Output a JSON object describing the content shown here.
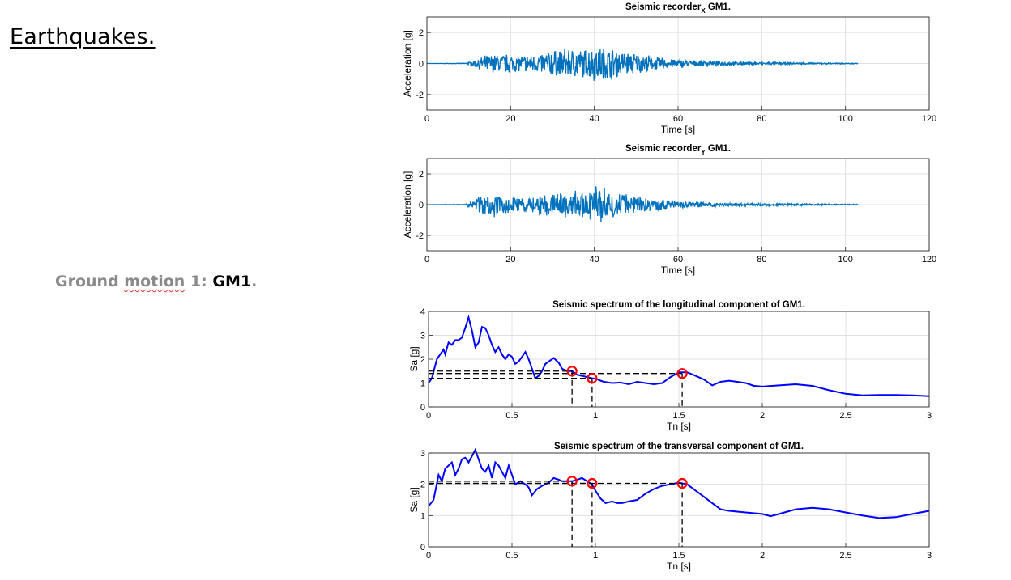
{
  "slide": {
    "title": "Earthquakes.",
    "label_part1": "Ground ",
    "label_part2": "motion",
    "label_part3": " 1: ",
    "label_part4": "GM1",
    "label_part5": "."
  },
  "colors": {
    "record_line": "#0072BD",
    "spectrum_line": "#0000FF",
    "marker": "#FF0000",
    "guide": "#000000",
    "grid": "#E0E0E0"
  },
  "chart_data": [
    {
      "type": "line",
      "title_main": "Seismic recorder",
      "title_sub": "X",
      "title_end": " GM1.",
      "xlabel": "Time [s]",
      "ylabel": "Acceleration [g]",
      "xlim": [
        0,
        120
      ],
      "ylim": [
        -3,
        3
      ],
      "xticks": [
        0,
        20,
        40,
        60,
        80,
        100,
        120
      ],
      "yticks": [
        -2,
        0,
        2
      ],
      "grid": true,
      "record_end": 103,
      "envelope": [
        [
          0,
          0
        ],
        [
          9,
          0.02
        ],
        [
          11,
          0.15
        ],
        [
          14,
          0.45
        ],
        [
          18,
          0.55
        ],
        [
          22,
          0.45
        ],
        [
          26,
          0.5
        ],
        [
          30,
          0.75
        ],
        [
          34,
          0.85
        ],
        [
          38,
          0.8
        ],
        [
          40,
          1.0
        ],
        [
          44,
          0.85
        ],
        [
          48,
          0.65
        ],
        [
          52,
          0.5
        ],
        [
          56,
          0.35
        ],
        [
          60,
          0.25
        ],
        [
          64,
          0.18
        ],
        [
          70,
          0.12
        ],
        [
          78,
          0.08
        ],
        [
          88,
          0.05
        ],
        [
          96,
          0.04
        ],
        [
          103,
          0.02
        ]
      ],
      "seed": 7
    },
    {
      "type": "line",
      "title_main": "Seismic recorder",
      "title_sub": "Y",
      "title_end": " GM1.",
      "xlabel": "Time [s]",
      "ylabel": "Acceleration [g]",
      "xlim": [
        0,
        120
      ],
      "ylim": [
        -3,
        3
      ],
      "xticks": [
        0,
        20,
        40,
        60,
        80,
        100,
        120
      ],
      "yticks": [
        -2,
        0,
        2
      ],
      "grid": true,
      "record_end": 103,
      "envelope": [
        [
          0,
          0
        ],
        [
          9,
          0.02
        ],
        [
          11,
          0.2
        ],
        [
          14,
          0.6
        ],
        [
          16,
          0.7
        ],
        [
          20,
          0.5
        ],
        [
          25,
          0.5
        ],
        [
          30,
          0.7
        ],
        [
          34,
          0.75
        ],
        [
          38,
          0.8
        ],
        [
          41,
          1.1
        ],
        [
          44,
          0.8
        ],
        [
          48,
          0.6
        ],
        [
          52,
          0.4
        ],
        [
          56,
          0.3
        ],
        [
          60,
          0.22
        ],
        [
          65,
          0.15
        ],
        [
          72,
          0.1
        ],
        [
          80,
          0.07
        ],
        [
          90,
          0.05
        ],
        [
          103,
          0.03
        ]
      ],
      "seed": 19
    },
    {
      "type": "line",
      "title": "Seismic spectrum of the longitudinal component of GM1.",
      "xlabel": "Tn [s]",
      "ylabel": "Sa [g]",
      "xlim": [
        0,
        3
      ],
      "ylim": [
        0,
        4
      ],
      "xticks": [
        0,
        0.5,
        1,
        1.5,
        2,
        2.5,
        3
      ],
      "xticklabels": [
        "0",
        "0.5",
        "1",
        "1.5",
        "2",
        "2.5",
        "3"
      ],
      "yticks": [
        0,
        1,
        2,
        3,
        4
      ],
      "grid": true,
      "x": [
        0,
        0.02,
        0.05,
        0.07,
        0.09,
        0.1,
        0.12,
        0.14,
        0.16,
        0.18,
        0.2,
        0.22,
        0.24,
        0.26,
        0.28,
        0.3,
        0.32,
        0.34,
        0.36,
        0.38,
        0.4,
        0.42,
        0.44,
        0.46,
        0.48,
        0.5,
        0.52,
        0.54,
        0.56,
        0.58,
        0.6,
        0.62,
        0.64,
        0.66,
        0.68,
        0.7,
        0.72,
        0.75,
        0.78,
        0.8,
        0.83,
        0.86,
        0.89,
        0.92,
        0.95,
        0.98,
        1.0,
        1.05,
        1.1,
        1.15,
        1.2,
        1.25,
        1.3,
        1.35,
        1.4,
        1.45,
        1.5,
        1.55,
        1.6,
        1.65,
        1.7,
        1.75,
        1.8,
        1.85,
        1.9,
        1.95,
        2.0,
        2.1,
        2.2,
        2.3,
        2.4,
        2.5,
        2.6,
        2.7,
        2.8,
        2.9,
        3.0
      ],
      "y": [
        1.0,
        1.2,
        2.0,
        2.2,
        2.4,
        2.2,
        2.7,
        2.6,
        2.8,
        2.8,
        2.9,
        3.3,
        3.75,
        3.2,
        2.5,
        2.7,
        3.35,
        3.3,
        3.0,
        2.6,
        2.3,
        2.5,
        2.2,
        2.0,
        2.2,
        2.1,
        1.8,
        1.9,
        2.1,
        2.3,
        2.0,
        1.6,
        1.2,
        1.3,
        1.5,
        1.8,
        1.9,
        2.05,
        1.85,
        1.6,
        1.5,
        1.5,
        1.35,
        1.3,
        1.25,
        1.2,
        1.18,
        1.05,
        1.0,
        1.02,
        0.95,
        1.05,
        1.0,
        0.95,
        1.0,
        1.25,
        1.45,
        1.45,
        1.3,
        1.15,
        0.9,
        1.05,
        1.1,
        1.05,
        1.0,
        0.88,
        0.85,
        0.9,
        0.95,
        0.88,
        0.7,
        0.55,
        0.48,
        0.5,
        0.5,
        0.48,
        0.45
      ],
      "markers": [
        {
          "x": 0.86,
          "y": 1.5
        },
        {
          "x": 0.98,
          "y": 1.2
        },
        {
          "x": 1.52,
          "y": 1.4
        }
      ]
    },
    {
      "type": "line",
      "title": "Seismic spectrum of the transversal component of GM1.",
      "xlabel": "Tn [s]",
      "ylabel": "Sa [g]",
      "xlim": [
        0,
        3
      ],
      "ylim": [
        0,
        3
      ],
      "xticks": [
        0,
        0.5,
        1,
        1.5,
        2,
        2.5,
        3
      ],
      "xticklabels": [
        "0",
        "0.5",
        "1",
        "1.5",
        "2",
        "2.5",
        "3"
      ],
      "yticks": [
        0,
        1,
        2,
        3
      ],
      "grid": true,
      "x": [
        0,
        0.03,
        0.06,
        0.08,
        0.1,
        0.12,
        0.14,
        0.16,
        0.18,
        0.2,
        0.22,
        0.24,
        0.26,
        0.28,
        0.3,
        0.32,
        0.34,
        0.36,
        0.38,
        0.4,
        0.42,
        0.44,
        0.46,
        0.48,
        0.5,
        0.52,
        0.55,
        0.58,
        0.6,
        0.62,
        0.65,
        0.68,
        0.7,
        0.72,
        0.75,
        0.78,
        0.8,
        0.83,
        0.86,
        0.89,
        0.92,
        0.95,
        0.98,
        1.0,
        1.03,
        1.06,
        1.1,
        1.13,
        1.16,
        1.2,
        1.25,
        1.3,
        1.35,
        1.4,
        1.45,
        1.5,
        1.55,
        1.6,
        1.65,
        1.7,
        1.75,
        1.8,
        1.9,
        2.0,
        2.05,
        2.1,
        2.2,
        2.3,
        2.4,
        2.5,
        2.6,
        2.7,
        2.8,
        2.9,
        3.0
      ],
      "y": [
        1.3,
        1.5,
        2.3,
        2.1,
        2.5,
        2.6,
        2.7,
        2.3,
        2.5,
        2.8,
        2.85,
        2.7,
        2.9,
        3.1,
        2.8,
        2.5,
        2.4,
        2.6,
        2.2,
        2.7,
        2.6,
        2.4,
        2.2,
        2.6,
        2.3,
        2.0,
        2.1,
        2.0,
        1.9,
        1.65,
        1.85,
        1.95,
        2.0,
        2.05,
        2.2,
        2.15,
        2.1,
        2.1,
        2.1,
        2.15,
        2.2,
        2.1,
        2.0,
        1.8,
        1.55,
        1.4,
        1.45,
        1.4,
        1.4,
        1.45,
        1.5,
        1.7,
        1.85,
        1.95,
        2.0,
        2.05,
        2.0,
        1.8,
        1.6,
        1.4,
        1.2,
        1.15,
        1.1,
        1.05,
        0.98,
        1.05,
        1.2,
        1.25,
        1.2,
        1.1,
        1.0,
        0.92,
        0.95,
        1.05,
        1.15
      ],
      "markers": [
        {
          "x": 0.86,
          "y": 2.1
        },
        {
          "x": 0.98,
          "y": 2.03
        },
        {
          "x": 1.52,
          "y": 2.03
        }
      ]
    }
  ]
}
